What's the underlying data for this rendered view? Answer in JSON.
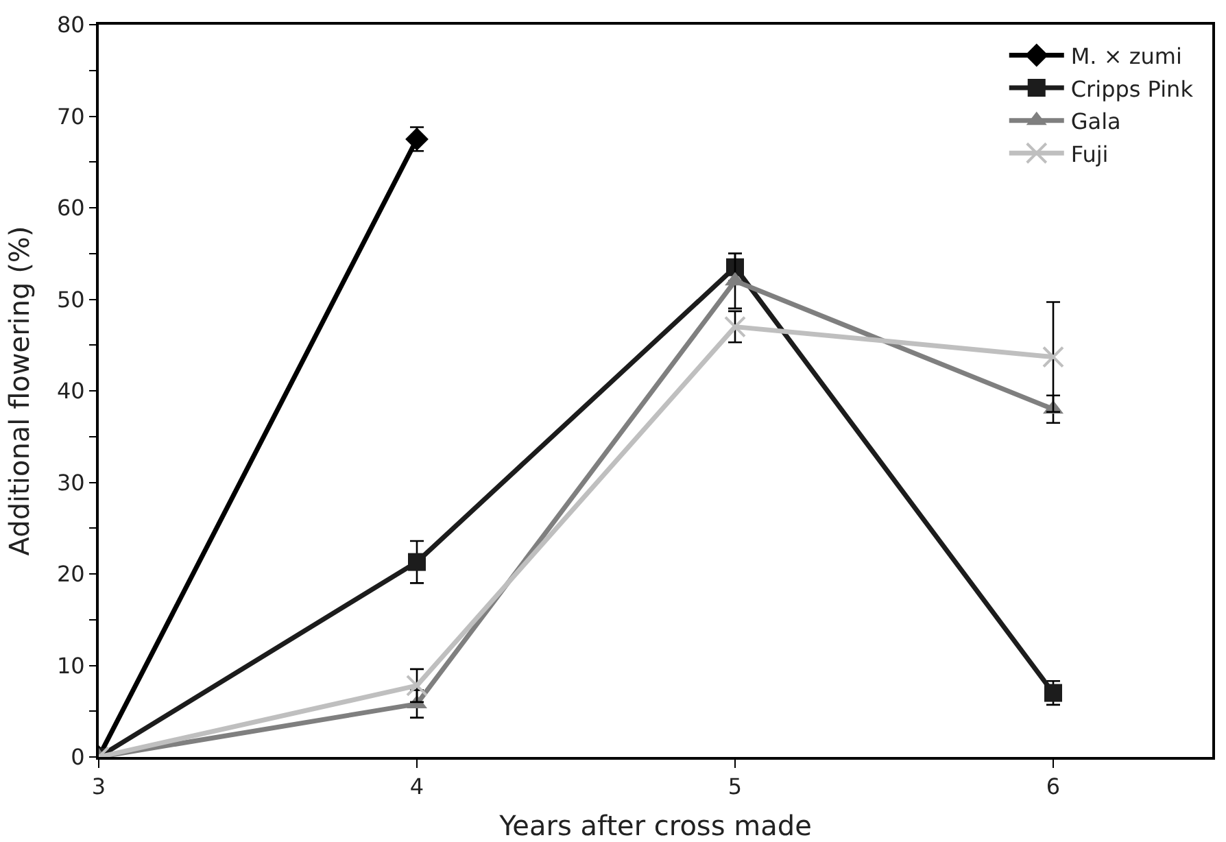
{
  "chart_data": {
    "type": "line",
    "xlabel": "Years after cross made",
    "ylabel": "Additional flowering (%)",
    "xlim": [
      3,
      6.5
    ],
    "xticks": [
      3,
      4,
      5,
      6
    ],
    "ylim": [
      0,
      80
    ],
    "yticks": [
      0,
      {
        "value": 5,
        "label": null
      },
      10,
      {
        "value": 15,
        "label": null
      },
      20,
      {
        "value": 25,
        "label": null
      },
      30,
      {
        "value": 35,
        "label": null
      },
      40,
      {
        "value": 45,
        "label": null
      },
      50,
      {
        "value": 55,
        "label": null
      },
      60,
      {
        "value": 65,
        "label": null
      },
      70,
      {
        "value": 75,
        "label": null
      },
      80
    ],
    "grid": false,
    "legend": "top right",
    "series": [
      {
        "name": "M. × zumi",
        "color": "#000000",
        "marker": "diamond",
        "x": [
          3,
          4
        ],
        "values": [
          0,
          67.5
        ],
        "errors": [
          null,
          1.3
        ]
      },
      {
        "name": "Cripps Pink",
        "color": "#1c1c1c",
        "marker": "square",
        "x": [
          3,
          4,
          5,
          6
        ],
        "values": [
          0,
          21.3,
          53.5,
          7
        ],
        "errors": [
          null,
          2.3,
          1.5,
          1.3
        ]
      },
      {
        "name": "Gala",
        "color": "#7f7f7f",
        "marker": "triangle",
        "x": [
          3,
          4,
          5,
          6
        ],
        "values": [
          0,
          5.8,
          52,
          38
        ],
        "errors": [
          null,
          1.5,
          3,
          1.5
        ]
      },
      {
        "name": "Fuji",
        "color": "#bfbfbf",
        "marker": "cross",
        "x": [
          3,
          4,
          5,
          6
        ],
        "values": [
          0,
          7.8,
          47,
          43.7
        ],
        "errors": [
          null,
          1.8,
          1.7,
          6
        ]
      }
    ]
  }
}
